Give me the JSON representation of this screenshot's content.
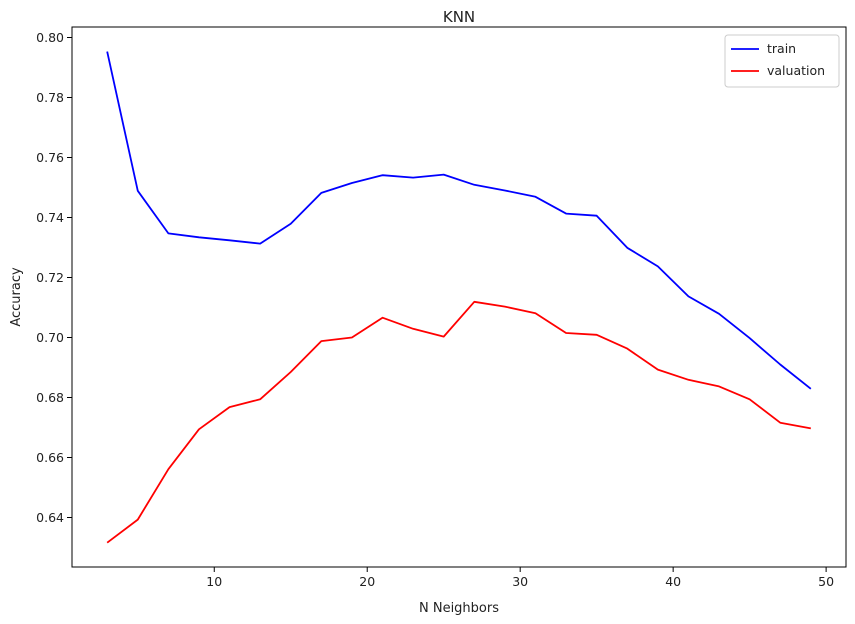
{
  "chart_data": {
    "type": "line",
    "title": "KNN",
    "xlabel": "N Neighbors",
    "ylabel": "Accuracy",
    "xlim": [
      0.7,
      51.3
    ],
    "ylim": [
      0.6235,
      0.8035
    ],
    "xticks": [
      10,
      20,
      30,
      40,
      50
    ],
    "yticks": [
      0.64,
      0.66,
      0.68,
      0.7,
      0.72,
      0.74,
      0.76,
      0.78,
      0.8
    ],
    "ytick_labels": [
      "0.64",
      "0.66",
      "0.68",
      "0.70",
      "0.72",
      "0.74",
      "0.76",
      "0.78",
      "0.80"
    ],
    "grid": false,
    "legend_position": "top-right",
    "x": [
      3,
      5,
      7,
      9,
      11,
      13,
      15,
      17,
      19,
      21,
      23,
      25,
      27,
      29,
      31,
      33,
      35,
      37,
      39,
      41,
      43,
      45,
      47,
      49
    ],
    "series": [
      {
        "name": "train",
        "color": "#0000ff",
        "values": [
          0.7953,
          0.7489,
          0.7347,
          0.7334,
          0.7324,
          0.7313,
          0.7379,
          0.7482,
          0.7515,
          0.7541,
          0.7533,
          0.7543,
          0.7509,
          0.749,
          0.7469,
          0.7413,
          0.7406,
          0.7299,
          0.7237,
          0.7137,
          0.7079,
          0.6998,
          0.691,
          0.6829
        ]
      },
      {
        "name": "valuation",
        "color": "#ff0000",
        "values": [
          0.6316,
          0.6393,
          0.6561,
          0.6694,
          0.6768,
          0.6794,
          0.6885,
          0.6988,
          0.7,
          0.7066,
          0.7029,
          0.7003,
          0.7119,
          0.7103,
          0.7081,
          0.7015,
          0.7009,
          0.6963,
          0.6893,
          0.6859,
          0.6837,
          0.6794,
          0.6716,
          0.6697
        ]
      }
    ]
  }
}
